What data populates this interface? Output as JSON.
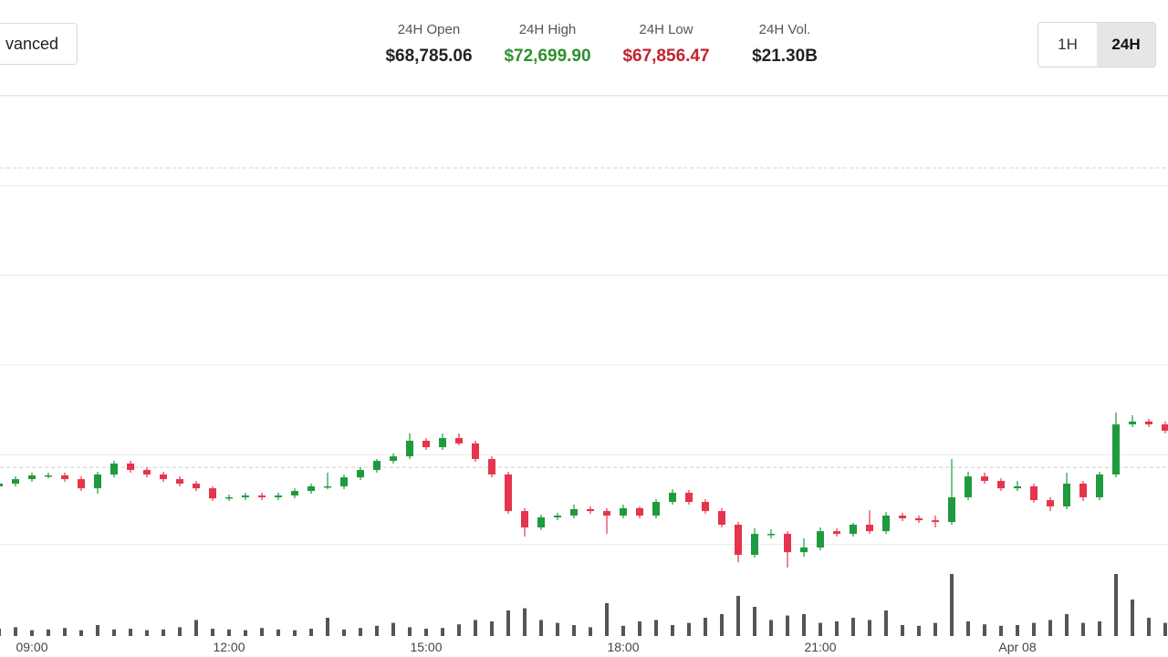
{
  "header": {
    "advanced_button": "vanced",
    "stats": [
      {
        "label": "24H Open",
        "value": "$68,785.06",
        "color": "#222222"
      },
      {
        "label": "24H High",
        "value": "$72,699.90",
        "color": "#2f8f2f"
      },
      {
        "label": "24H Low",
        "value": "$67,856.47",
        "color": "#c2222e"
      },
      {
        "label": "24H Vol.",
        "value": "$21.30B",
        "color": "#222222"
      }
    ],
    "range_buttons": [
      "1H",
      "24H"
    ],
    "active_range": "24H"
  },
  "chart_data": {
    "type": "candlestick",
    "categories": [
      null,
      null,
      "09:00",
      null,
      null,
      null,
      null,
      null,
      null,
      null,
      null,
      null,
      null,
      null,
      "12:00",
      null,
      null,
      null,
      null,
      null,
      null,
      null,
      null,
      null,
      null,
      null,
      "15:00",
      null,
      null,
      null,
      null,
      null,
      null,
      null,
      null,
      null,
      null,
      null,
      "18:00",
      null,
      null,
      null,
      null,
      null,
      null,
      null,
      null,
      null,
      null,
      null,
      "21:00",
      null,
      null,
      null,
      null,
      null,
      null,
      null,
      null,
      null,
      null,
      null,
      "Apr 08",
      null,
      null,
      null,
      null,
      null,
      null,
      null,
      null,
      null
    ],
    "ohlc": [
      [
        68324,
        68354,
        68308,
        68339
      ],
      [
        68339,
        68379,
        68324,
        68364
      ],
      [
        68364,
        68400,
        68349,
        68385
      ],
      [
        68385,
        68400,
        68369,
        68385
      ],
      [
        68385,
        68400,
        68349,
        68364
      ],
      [
        68364,
        68379,
        68298,
        68313
      ],
      [
        68313,
        68405,
        68283,
        68390
      ],
      [
        68390,
        68466,
        68374,
        68451
      ],
      [
        68451,
        68466,
        68400,
        68415
      ],
      [
        68415,
        68430,
        68374,
        68390
      ],
      [
        68390,
        68405,
        68349,
        68364
      ],
      [
        68364,
        68379,
        68324,
        68339
      ],
      [
        68339,
        68354,
        68298,
        68313
      ],
      [
        68313,
        68324,
        68242,
        68257
      ],
      [
        68257,
        68278,
        68242,
        68263
      ],
      [
        68263,
        68288,
        68247,
        68273
      ],
      [
        68273,
        68288,
        68247,
        68263
      ],
      [
        68263,
        68288,
        68247,
        68273
      ],
      [
        68273,
        68313,
        68257,
        68298
      ],
      [
        68298,
        68339,
        68283,
        68324
      ],
      [
        68324,
        68400,
        68308,
        68324
      ],
      [
        68324,
        68390,
        68308,
        68374
      ],
      [
        68374,
        68430,
        68359,
        68415
      ],
      [
        68415,
        68476,
        68400,
        68466
      ],
      [
        68466,
        68507,
        68451,
        68491
      ],
      [
        68491,
        68619,
        68476,
        68578
      ],
      [
        68578,
        68593,
        68527,
        68542
      ],
      [
        68542,
        68619,
        68527,
        68593
      ],
      [
        68593,
        68619,
        68553,
        68563
      ],
      [
        68563,
        68578,
        68461,
        68476
      ],
      [
        68476,
        68491,
        68374,
        68390
      ],
      [
        68390,
        68405,
        68171,
        68186
      ],
      [
        68186,
        68202,
        68044,
        68095
      ],
      [
        68095,
        68166,
        68080,
        68151
      ],
      [
        68151,
        68176,
        68135,
        68161
      ],
      [
        68161,
        68222,
        68146,
        68197
      ],
      [
        68197,
        68212,
        68171,
        68186
      ],
      [
        68186,
        68202,
        68059,
        68161
      ],
      [
        68161,
        68222,
        68146,
        68202
      ],
      [
        68202,
        68212,
        68146,
        68161
      ],
      [
        68161,
        68252,
        68146,
        68237
      ],
      [
        68237,
        68308,
        68222,
        68288
      ],
      [
        68288,
        68303,
        68222,
        68237
      ],
      [
        68237,
        68252,
        68171,
        68186
      ],
      [
        68186,
        68202,
        68095,
        68110
      ],
      [
        68110,
        68125,
        67901,
        67942
      ],
      [
        67942,
        68090,
        67927,
        68059
      ],
      [
        68059,
        68085,
        68034,
        68059
      ],
      [
        68059,
        68074,
        67871,
        67957
      ],
      [
        67957,
        68034,
        67932,
        67983
      ],
      [
        67983,
        68095,
        67967,
        68074
      ],
      [
        68074,
        68090,
        68044,
        68059
      ],
      [
        68059,
        68120,
        68044,
        68110
      ],
      [
        68110,
        68191,
        68059,
        68074
      ],
      [
        68074,
        68181,
        68059,
        68161
      ],
      [
        68161,
        68176,
        68130,
        68146
      ],
      [
        68146,
        68161,
        68120,
        68135
      ],
      [
        68135,
        68161,
        68095,
        68125
      ],
      [
        68125,
        68476,
        68110,
        68263
      ],
      [
        68263,
        68405,
        68247,
        68379
      ],
      [
        68379,
        68400,
        68339,
        68354
      ],
      [
        68354,
        68369,
        68298,
        68313
      ],
      [
        68313,
        68354,
        68298,
        68324
      ],
      [
        68324,
        68339,
        68232,
        68247
      ],
      [
        68247,
        68263,
        68186,
        68212
      ],
      [
        68212,
        68400,
        68197,
        68339
      ],
      [
        68339,
        68354,
        68242,
        68263
      ],
      [
        68263,
        68405,
        68247,
        68390
      ],
      [
        68390,
        68735,
        68374,
        68669
      ],
      [
        68669,
        68720,
        68654,
        68685
      ],
      [
        68685,
        68700,
        68654,
        68669
      ],
      [
        68669,
        68685,
        68619,
        68634
      ]
    ],
    "volumes": [
      10,
      12,
      8,
      9,
      11,
      8,
      15,
      9,
      10,
      8,
      9,
      12,
      22,
      10,
      9,
      8,
      11,
      9,
      8,
      10,
      25,
      9,
      11,
      14,
      18,
      12,
      10,
      11,
      16,
      22,
      20,
      35,
      38,
      22,
      18,
      15,
      12,
      45,
      14,
      20,
      22,
      15,
      18,
      25,
      30,
      55,
      40,
      22,
      28,
      30,
      18,
      20,
      25,
      22,
      35,
      15,
      14,
      18,
      85,
      20,
      16,
      14,
      15,
      18,
      22,
      30,
      18,
      20,
      85,
      50,
      25,
      18
    ],
    "ylim": [
      67800,
      70500
    ],
    "yticks": [
      68000,
      68500,
      69000,
      69500,
      70000,
      70500
    ],
    "price_lines": [
      70098,
      68430
    ],
    "vlim": [
      0,
      100
    ],
    "up_color": "#1f9a3c",
    "down_color": "#e5344b",
    "volume_color": "#555555",
    "grid": true
  }
}
